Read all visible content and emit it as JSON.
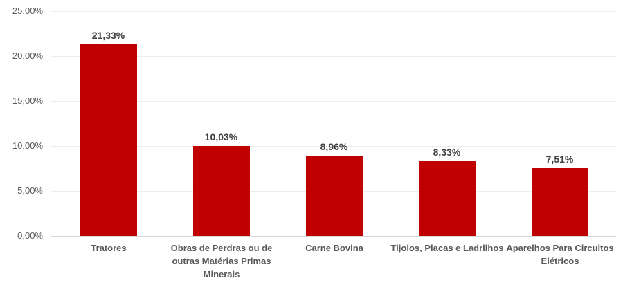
{
  "chart_data": {
    "type": "bar",
    "categories": [
      "Tratores",
      "Obras de Perdras ou de outras Matérias Primas Minerais",
      "Carne Bovina",
      "Tijolos, Placas e Ladrilhos",
      "Aparelhos Para Circuitos Elétricos"
    ],
    "values": [
      21.33,
      10.03,
      8.96,
      8.33,
      7.51
    ],
    "value_labels": [
      "21,33%",
      "10,03%",
      "8,96%",
      "8,33%",
      "7,51%"
    ],
    "y_ticks": [
      "25,00%",
      "20,00%",
      "15,00%",
      "10,00%",
      "5,00%",
      "0,00%"
    ],
    "ylim": [
      0,
      25
    ],
    "title": "",
    "xlabel": "",
    "ylabel": "",
    "grid": "horizontal",
    "legend": "none",
    "bar_color": "#c00000",
    "label_color": "#404040",
    "axis_text_color": "#595959",
    "gridline_color": "#ececec"
  }
}
